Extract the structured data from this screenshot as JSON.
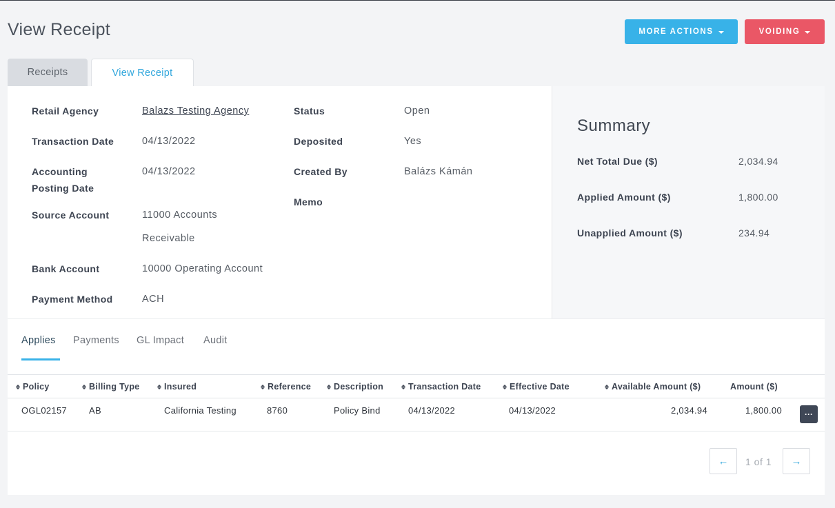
{
  "header": {
    "title": "View Receipt",
    "more_actions_label": "MORE ACTIONS",
    "voiding_label": "VOIDING"
  },
  "tabs": [
    {
      "label": "Receipts"
    },
    {
      "label": "View Receipt"
    }
  ],
  "details": {
    "retail_agency_label": "Retail Agency",
    "retail_agency_value": "Balazs Testing Agency",
    "transaction_date_label": "Transaction Date",
    "transaction_date_value": "04/13/2022",
    "accounting_posting_date_label_1": "Accounting",
    "accounting_posting_date_label_2": "Posting Date",
    "accounting_posting_date_value": "04/13/2022",
    "source_account_label": "Source Account",
    "source_account_value_1": "11000 Accounts",
    "source_account_value_2": "Receivable",
    "bank_account_label": "Bank Account",
    "bank_account_value": "10000 Operating Account",
    "payment_method_label": "Payment Method",
    "payment_method_value": "ACH",
    "status_label": "Status",
    "status_value": "Open",
    "deposited_label": "Deposited",
    "deposited_value": "Yes",
    "created_by_label": "Created By",
    "created_by_value": "Balázs Kámán",
    "memo_label": "Memo"
  },
  "summary": {
    "title": "Summary",
    "net_total_due_label": "Net Total Due ($)",
    "net_total_due_value": "2,034.94",
    "applied_amount_label": "Applied Amount ($)",
    "applied_amount_value": "1,800.00",
    "unapplied_amount_label": "Unapplied Amount ($)",
    "unapplied_amount_value": "234.94"
  },
  "subtabs": [
    {
      "label": "Applies"
    },
    {
      "label": "Payments"
    },
    {
      "label": "GL Impact"
    },
    {
      "label": "Audit"
    }
  ],
  "table": {
    "columns": [
      "Policy",
      "Billing Type",
      "Insured",
      "Reference",
      "Description",
      "Transaction Date",
      "Effective Date",
      "Available Amount ($)",
      "Amount ($)"
    ],
    "rows": [
      {
        "policy": "OGL02157",
        "billing_type": "AB",
        "insured": "California Testing",
        "reference": "8760",
        "description": "Policy Bind",
        "transaction_date": "04/13/2022",
        "effective_date": "04/13/2022",
        "available_amount": "2,034.94",
        "amount": "1,800.00",
        "menu_label": "···"
      }
    ]
  },
  "pagination": {
    "info": "1 of 1",
    "prev_symbol": "←",
    "next_symbol": "→"
  },
  "colors": {
    "accent": "#38b2e8",
    "danger": "#ea5766"
  }
}
